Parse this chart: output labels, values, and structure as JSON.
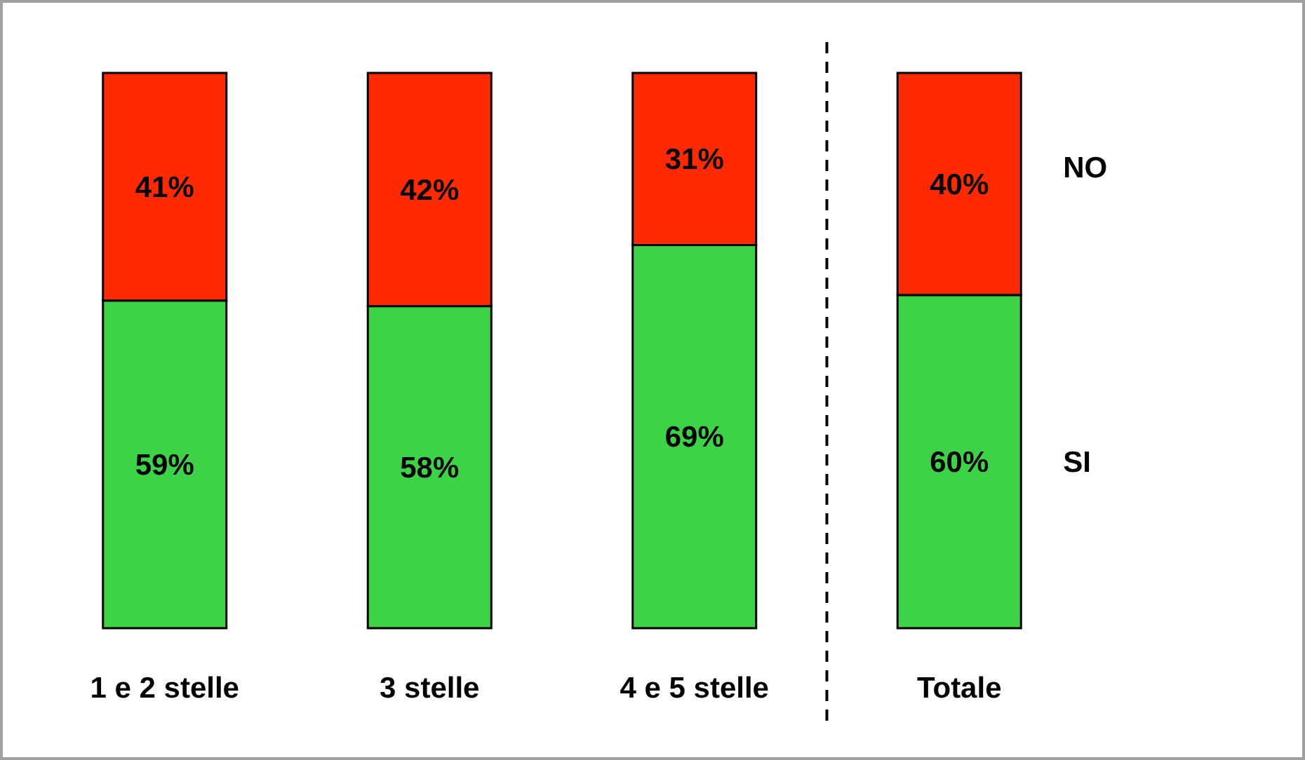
{
  "chart_data": {
    "type": "bar",
    "stacked": true,
    "categories": [
      "1 e 2 stelle",
      "3 stelle",
      "4 e 5 stelle",
      "Totale"
    ],
    "series": [
      {
        "name": "SI",
        "color": "#3cd446",
        "values": [
          59,
          58,
          69,
          60
        ],
        "value_labels": [
          "59%",
          "58%",
          "69%",
          "60%"
        ]
      },
      {
        "name": "NO",
        "color": "#ff2a00",
        "values": [
          41,
          42,
          31,
          40
        ],
        "value_labels": [
          "41%",
          "42%",
          "31%",
          "40%"
        ]
      }
    ],
    "ylim": [
      0,
      100
    ],
    "tick_labels": "x"
  }
}
